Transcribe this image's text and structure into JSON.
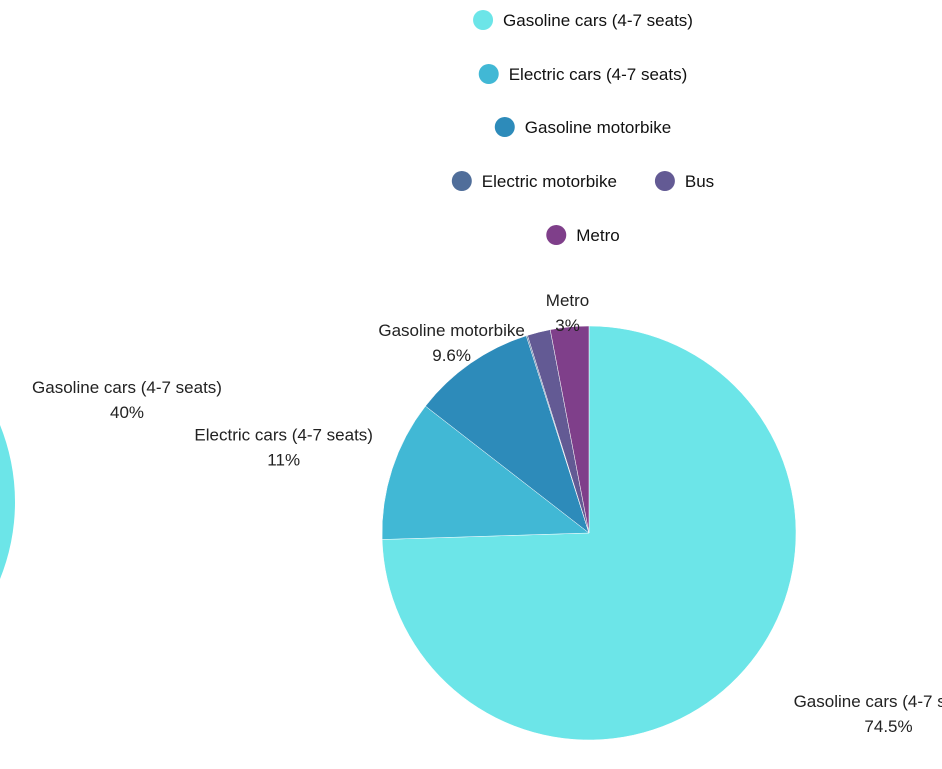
{
  "chart_data": [
    {
      "type": "pie",
      "visibility": "partially cropped at left edge",
      "slices": [
        {
          "label": "Gasoline cars (4-7 seats)",
          "value": 40,
          "value_label": "40%",
          "color": "#6ce5e8"
        }
      ]
    },
    {
      "type": "pie",
      "legend_position": "top",
      "slices": [
        {
          "label": "Gasoline cars (4-7 seats)",
          "value": 74.5,
          "value_label": "74.5%",
          "color": "#6ce5e8"
        },
        {
          "label": "Electric cars (4-7 seats)",
          "value": 11,
          "value_label": "11%",
          "color": "#41b8d5"
        },
        {
          "label": "Gasoline motorbike",
          "value": 9.6,
          "value_label": "9.6%",
          "color": "#2d8bba"
        },
        {
          "label": "Electric motorbike",
          "value": 0.1,
          "value_label": "",
          "color": "#506e9a"
        },
        {
          "label": "Bus",
          "value": 1.8,
          "value_label": "",
          "color": "#635a94"
        },
        {
          "label": "Metro",
          "value": 3,
          "value_label": "3%",
          "color": "#7f3f8a"
        }
      ]
    }
  ],
  "legend": {
    "items": [
      {
        "label": "Gasoline cars (4-7 seats)",
        "color": "#6ce5e8"
      },
      {
        "label": "Electric cars (4-7 seats)",
        "color": "#41b8d5"
      },
      {
        "label": "Gasoline motorbike",
        "color": "#2d8bba"
      },
      {
        "label": "Electric motorbike",
        "color": "#506e9a"
      },
      {
        "label": "Bus",
        "color": "#635a94"
      },
      {
        "label": "Metro",
        "color": "#7f3f8a"
      }
    ]
  }
}
